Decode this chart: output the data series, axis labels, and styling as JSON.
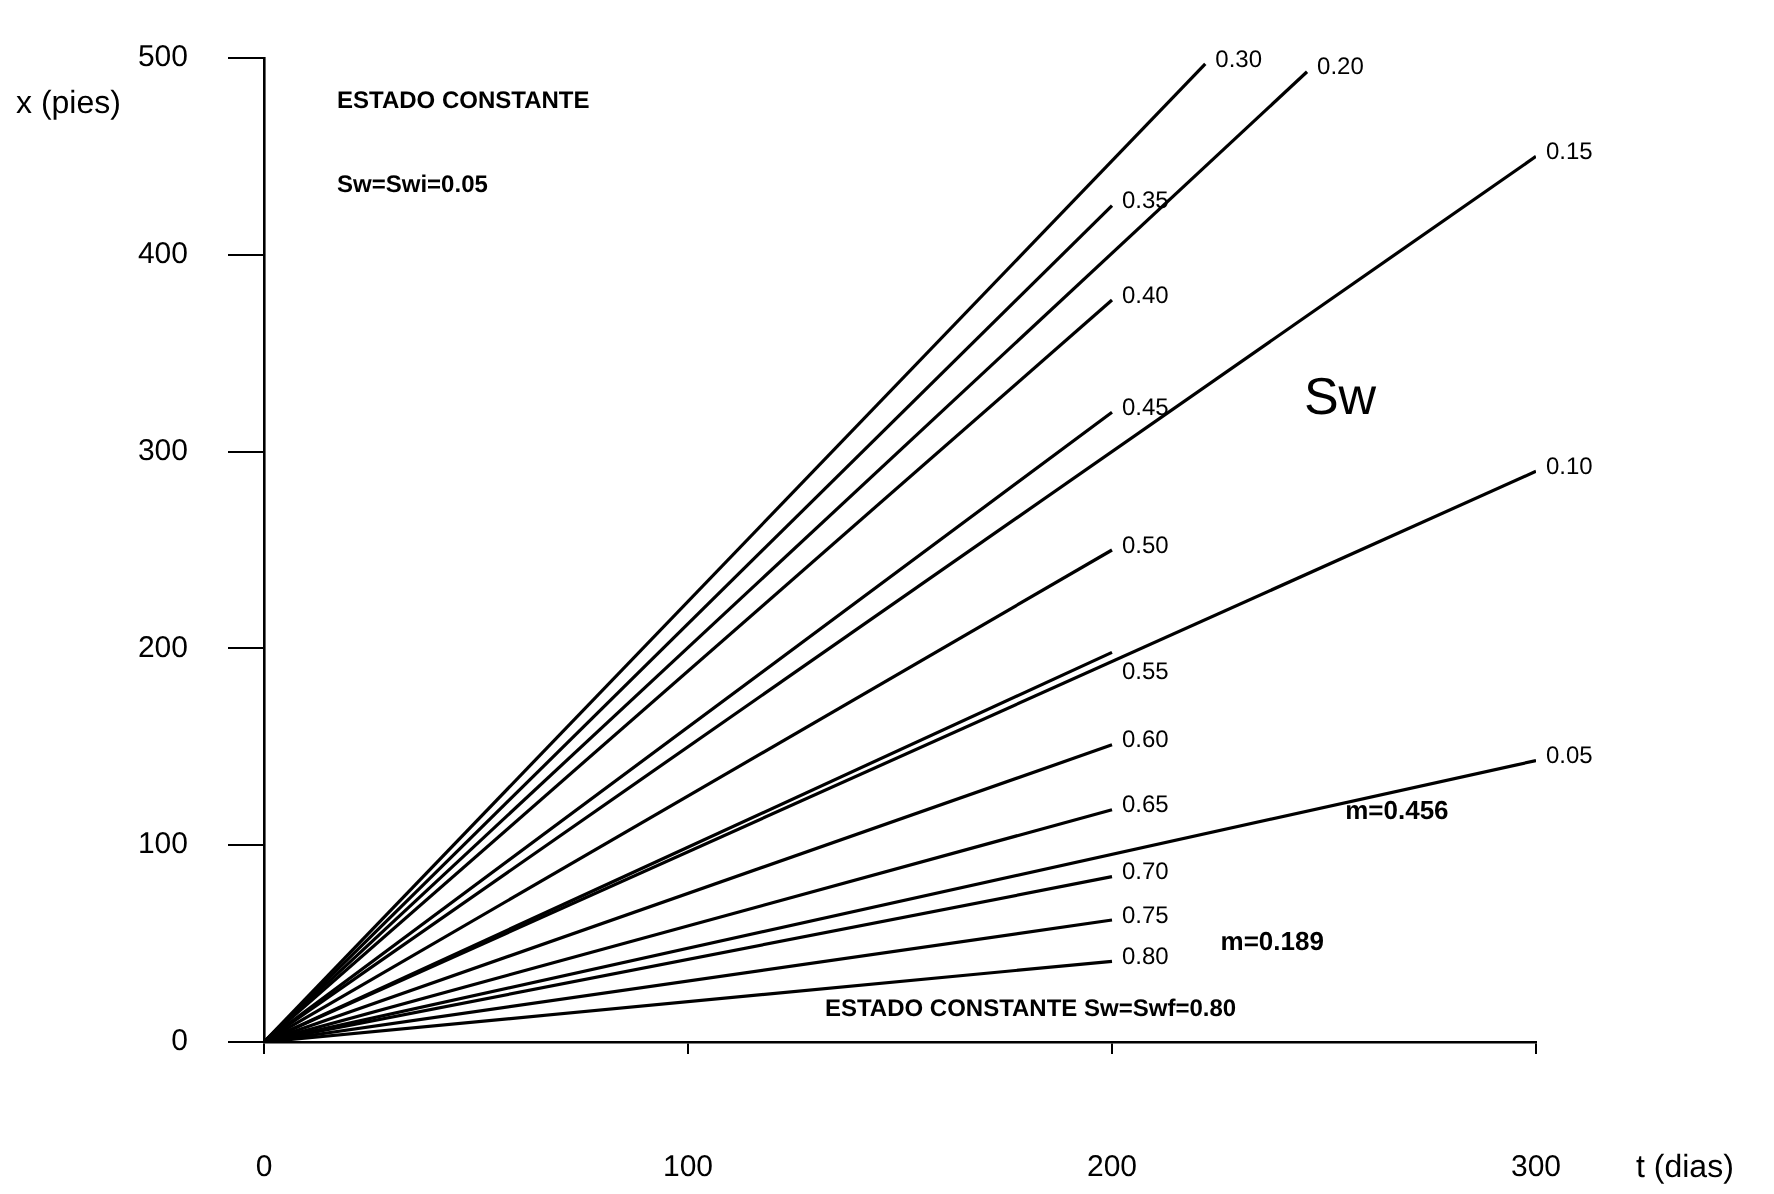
{
  "chart_data": {
    "type": "line",
    "xlabel": "t (dias)",
    "ylabel": "x (pies)",
    "xlim": [
      0,
      300
    ],
    "ylim": [
      0,
      500
    ],
    "xticks": [
      0,
      100,
      200,
      300
    ],
    "yticks": [
      0,
      100,
      200,
      300,
      400,
      500
    ],
    "grid": false,
    "legend": false,
    "marker": "none",
    "line_style": "solid",
    "series": [
      {
        "name": "0.30",
        "color": "#000000",
        "x": [
          0,
          222
        ],
        "values": [
          0,
          497
        ]
      },
      {
        "name": "0.20",
        "color": "#000000",
        "x": [
          0,
          246
        ],
        "values": [
          0,
          493
        ]
      },
      {
        "name": "0.15",
        "color": "#000000",
        "x": [
          0,
          300
        ],
        "values": [
          0,
          450
        ]
      },
      {
        "name": "0.35",
        "color": "#000000",
        "x": [
          0,
          200
        ],
        "values": [
          0,
          425
        ]
      },
      {
        "name": "0.40",
        "color": "#000000",
        "x": [
          0,
          200
        ],
        "values": [
          0,
          377
        ]
      },
      {
        "name": "0.45",
        "color": "#000000",
        "x": [
          0,
          200
        ],
        "values": [
          0,
          320
        ]
      },
      {
        "name": "0.50",
        "color": "#000000",
        "x": [
          0,
          200
        ],
        "values": [
          0,
          250
        ]
      },
      {
        "name": "0.10",
        "color": "#000000",
        "x": [
          0,
          300
        ],
        "values": [
          0,
          290
        ]
      },
      {
        "name": "0.55",
        "color": "#000000",
        "x": [
          0,
          200
        ],
        "values": [
          0,
          198
        ]
      },
      {
        "name": "0.60",
        "color": "#000000",
        "x": [
          0,
          200
        ],
        "values": [
          0,
          151
        ]
      },
      {
        "name": "0.05",
        "color": "#000000",
        "x": [
          0,
          300
        ],
        "values": [
          0,
          143
        ]
      },
      {
        "name": "0.65",
        "color": "#000000",
        "x": [
          0,
          200
        ],
        "values": [
          0,
          118
        ]
      },
      {
        "name": "0.70",
        "color": "#000000",
        "x": [
          0,
          200
        ],
        "values": [
          0,
          84
        ]
      },
      {
        "name": "0.75",
        "color": "#000000",
        "x": [
          0,
          200
        ],
        "values": [
          0,
          62
        ]
      },
      {
        "name": "0.80",
        "color": "#000000",
        "x": [
          0,
          200
        ],
        "values": [
          0,
          41
        ]
      }
    ],
    "annotations": [
      "ESTADO CONSTANTE",
      "Sw=Swi=0.05",
      "Sw",
      {
        "text": "m=0.456",
        "x": 255,
        "y": 117
      },
      "m=0.189",
      "ESTADO CONSTANTE Sw=Swf=0.80"
    ]
  }
}
